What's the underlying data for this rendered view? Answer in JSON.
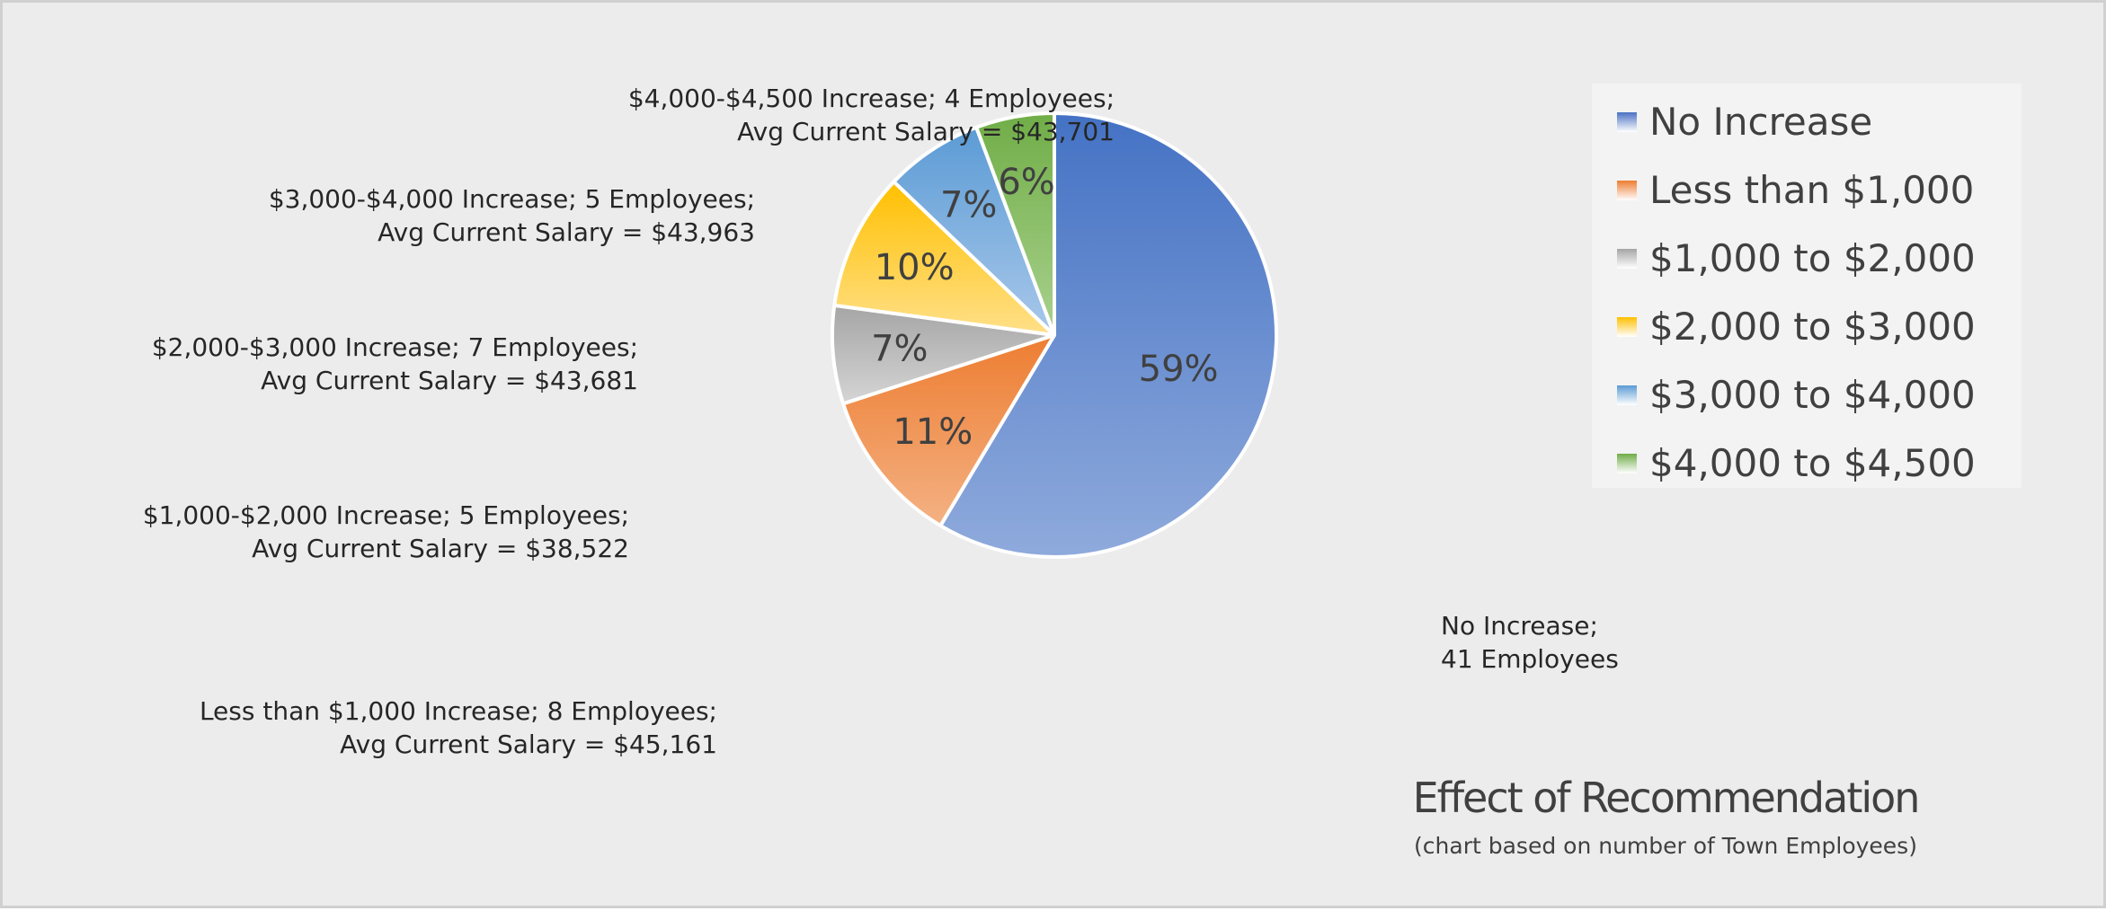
{
  "chart_data": {
    "type": "pie",
    "title": "Effect of Recommendation",
    "subtitle": "(chart based on number of Town Employees)",
    "categories": [
      "No Increase",
      "Less than $1,000",
      "$1,000 to $2,000",
      "$2,000 to $3,000",
      "$3,000 to $4,000",
      "$4,000 to $4,500"
    ],
    "values": [
      41,
      8,
      5,
      7,
      5,
      4
    ],
    "percent_labels": [
      "59%",
      "11%",
      "7%",
      "10%",
      "7%",
      "6%"
    ],
    "colors": [
      "#4a72c4",
      "#ed7d31",
      "#a5a5a5",
      "#ffc000",
      "#5b9bd5",
      "#70ad47"
    ],
    "callouts": [
      [
        "No Increase;",
        "41 Employees"
      ],
      [
        "Less than $1,000 Increase; 8 Employees;",
        "Avg Current Salary = $45,161"
      ],
      [
        "$1,000-$2,000 Increase; 5 Employees;",
        "Avg Current Salary = $38,522"
      ],
      [
        "$2,000-$3,000 Increase; 7 Employees;",
        "Avg Current Salary = $43,681"
      ],
      [
        "$3,000-$4,000 Increase; 5 Employees;",
        "Avg Current Salary = $43,963"
      ],
      [
        "$4,000-$4,500 Increase; 4 Employees;",
        "Avg Current Salary = $43,701"
      ]
    ],
    "legend_position": "right",
    "start_angle_deg": 0,
    "direction": "clockwise"
  }
}
